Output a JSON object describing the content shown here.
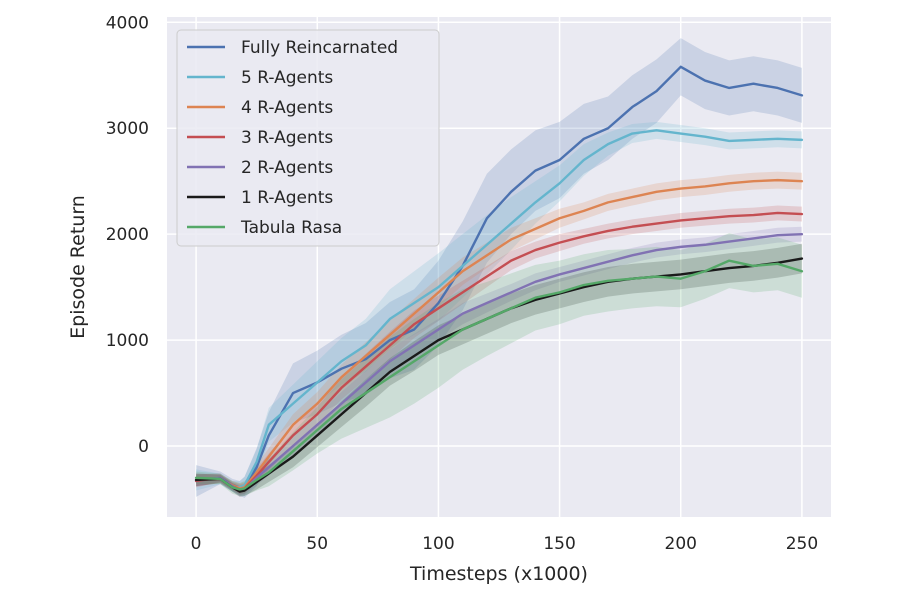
{
  "chart_data": {
    "type": "line",
    "title": "",
    "xlabel": "Timesteps (x1000)",
    "ylabel": "Episode Return",
    "xlim": [
      -12,
      262
    ],
    "ylim": [
      -670,
      4050
    ],
    "x_ticks": [
      0,
      50,
      100,
      150,
      200,
      250
    ],
    "y_ticks": [
      0,
      1000,
      2000,
      3000,
      4000
    ],
    "grid": true,
    "legend": "top-left",
    "x": [
      0,
      10,
      15,
      18,
      20,
      25,
      30,
      40,
      50,
      60,
      70,
      80,
      90,
      100,
      110,
      120,
      130,
      140,
      150,
      160,
      170,
      180,
      190,
      200,
      210,
      220,
      230,
      240,
      250
    ],
    "series": [
      {
        "name": "Fully Reincarnated",
        "color": "#4c72b0",
        "values": [
          -330,
          -300,
          -370,
          -400,
          -390,
          -200,
          100,
          500,
          600,
          730,
          820,
          1000,
          1100,
          1350,
          1700,
          2150,
          2400,
          2600,
          2700,
          2900,
          3000,
          3200,
          3350,
          3580,
          3450,
          3380,
          3420,
          3380,
          3310
        ],
        "band": [
          150,
          60,
          60,
          70,
          100,
          180,
          220,
          280,
          300,
          320,
          340,
          360,
          380,
          400,
          420,
          420,
          400,
          380,
          360,
          330,
          300,
          300,
          300,
          270,
          270,
          260,
          260,
          260,
          260
        ]
      },
      {
        "name": "5 R-Agents",
        "color": "#64b5cd",
        "values": [
          -320,
          -310,
          -380,
          -390,
          -370,
          -150,
          200,
          400,
          600,
          800,
          950,
          1200,
          1350,
          1500,
          1700,
          1900,
          2100,
          2300,
          2480,
          2700,
          2850,
          2950,
          2980,
          2950,
          2920,
          2880,
          2890,
          2900,
          2890
        ],
        "band": [
          100,
          50,
          50,
          60,
          80,
          120,
          160,
          180,
          200,
          220,
          250,
          280,
          300,
          320,
          300,
          280,
          250,
          200,
          170,
          150,
          110,
          90,
          80,
          80,
          80,
          80,
          80,
          80,
          80
        ]
      },
      {
        "name": "4 R-Agents",
        "color": "#dd8452",
        "values": [
          -320,
          -310,
          -370,
          -400,
          -390,
          -250,
          -100,
          200,
          400,
          650,
          850,
          1050,
          1250,
          1450,
          1650,
          1800,
          1950,
          2050,
          2150,
          2220,
          2300,
          2350,
          2400,
          2430,
          2450,
          2480,
          2500,
          2510,
          2500
        ],
        "band": [
          60,
          40,
          40,
          50,
          50,
          70,
          80,
          100,
          110,
          120,
          130,
          140,
          140,
          140,
          130,
          120,
          110,
          100,
          90,
          80,
          80,
          80,
          80,
          80,
          80,
          80,
          80,
          80,
          80
        ]
      },
      {
        "name": "3 R-Agents",
        "color": "#c44e52",
        "values": [
          -330,
          -300,
          -380,
          -410,
          -400,
          -280,
          -150,
          100,
          300,
          550,
          750,
          950,
          1150,
          1300,
          1450,
          1600,
          1750,
          1850,
          1920,
          1980,
          2030,
          2070,
          2100,
          2130,
          2150,
          2170,
          2180,
          2200,
          2190
        ],
        "band": [
          60,
          40,
          40,
          50,
          50,
          70,
          80,
          90,
          100,
          110,
          120,
          130,
          130,
          120,
          110,
          100,
          90,
          80,
          80,
          70,
          70,
          70,
          70,
          70,
          70,
          70,
          70,
          70,
          70
        ]
      },
      {
        "name": "2 R-Agents",
        "color": "#8172b3",
        "values": [
          -320,
          -300,
          -380,
          -420,
          -410,
          -300,
          -200,
          0,
          200,
          400,
          600,
          800,
          950,
          1100,
          1250,
          1350,
          1450,
          1550,
          1620,
          1680,
          1740,
          1800,
          1850,
          1880,
          1900,
          1930,
          1960,
          1990,
          2000
        ],
        "band": [
          60,
          40,
          40,
          50,
          50,
          70,
          80,
          90,
          100,
          110,
          110,
          110,
          110,
          100,
          100,
          90,
          80,
          80,
          70,
          70,
          70,
          70,
          70,
          70,
          70,
          70,
          70,
          70,
          70
        ]
      },
      {
        "name": "1 R-Agents",
        "color": "#1a1a1a",
        "values": [
          -320,
          -310,
          -390,
          -430,
          -420,
          -340,
          -260,
          -100,
          100,
          300,
          500,
          700,
          850,
          1000,
          1100,
          1200,
          1300,
          1380,
          1440,
          1500,
          1550,
          1580,
          1600,
          1620,
          1650,
          1680,
          1700,
          1730,
          1770
        ],
        "band": [
          60,
          40,
          40,
          50,
          50,
          70,
          80,
          100,
          110,
          120,
          130,
          130,
          140,
          140,
          140,
          140,
          140,
          140,
          140,
          140,
          140,
          140,
          140,
          140,
          140,
          140,
          140,
          140,
          140
        ]
      },
      {
        "name": "Tabula Rasa",
        "color": "#55a868",
        "values": [
          -300,
          -310,
          -390,
          -410,
          -400,
          -320,
          -250,
          -50,
          150,
          350,
          500,
          650,
          800,
          950,
          1100,
          1200,
          1300,
          1400,
          1450,
          1520,
          1560,
          1580,
          1600,
          1580,
          1650,
          1750,
          1700,
          1720,
          1650
        ],
        "band": [
          60,
          50,
          60,
          60,
          70,
          100,
          130,
          180,
          220,
          280,
          330,
          380,
          400,
          400,
          380,
          350,
          330,
          310,
          300,
          290,
          290,
          280,
          280,
          270,
          260,
          260,
          250,
          250,
          250
        ]
      }
    ]
  }
}
